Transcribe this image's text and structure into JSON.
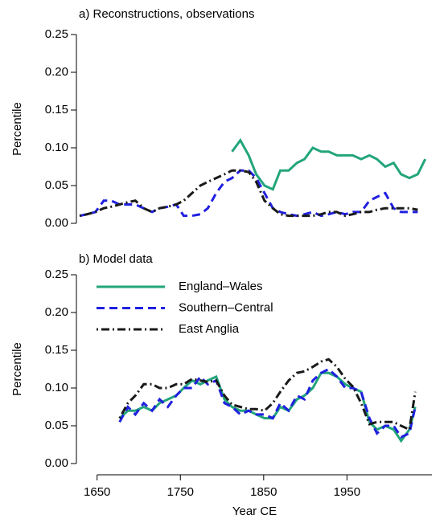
{
  "chart_data": [
    {
      "type": "line",
      "title": "a) Reconstructions, observations",
      "ylabel": "Percentile",
      "x": [
        1629,
        1638,
        1648,
        1658,
        1667,
        1677,
        1687,
        1696,
        1706,
        1716,
        1725,
        1735,
        1745,
        1754,
        1764,
        1774,
        1783,
        1793,
        1803,
        1812,
        1822,
        1832,
        1841,
        1851,
        1861,
        1870,
        1880,
        1890,
        1899,
        1909,
        1919,
        1928,
        1938,
        1948,
        1957,
        1967,
        1977,
        1986,
        1996,
        2006,
        2015,
        2025,
        2035,
        2044
      ],
      "xlim": [
        1630,
        2052
      ],
      "ylim": [
        0,
        0.25
      ],
      "yticks": [
        {
          "value": 0,
          "label": "0.00"
        },
        {
          "value": 0.05,
          "label": "0.05"
        },
        {
          "value": 0.1,
          "label": "0.10"
        },
        {
          "value": 0.15,
          "label": "0.15"
        },
        {
          "value": 0.2,
          "label": "0.20"
        },
        {
          "value": 0.25,
          "label": "0.25"
        }
      ],
      "series": [
        {
          "name": "England–Wales",
          "color": "#23a57c",
          "dash": "solid",
          "values": [
            null,
            null,
            null,
            null,
            null,
            null,
            null,
            null,
            null,
            null,
            null,
            null,
            null,
            null,
            null,
            null,
            null,
            null,
            null,
            0.095,
            0.11,
            0.09,
            0.065,
            0.05,
            0.045,
            0.07,
            0.07,
            0.08,
            0.085,
            0.1,
            0.095,
            0.095,
            0.09,
            0.09,
            0.09,
            0.085,
            0.09,
            0.085,
            0.075,
            0.08,
            0.065,
            0.06,
            0.065,
            0.085
          ]
        },
        {
          "name": "Southern–Central",
          "color": "#2020e0",
          "dash": "dashed",
          "values": [
            0.01,
            0.012,
            0.015,
            0.03,
            0.03,
            0.025,
            0.025,
            0.025,
            0.02,
            0.015,
            0.02,
            0.022,
            0.025,
            0.01,
            0.01,
            0.012,
            0.02,
            0.04,
            0.055,
            0.06,
            0.07,
            0.07,
            0.06,
            0.04,
            0.02,
            0.015,
            0.012,
            0.01,
            0.012,
            0.015,
            0.01,
            0.012,
            0.015,
            0.012,
            0.015,
            0.015,
            0.03,
            0.035,
            0.04,
            0.02,
            0.015,
            0.015,
            0.015,
            null
          ]
        },
        {
          "name": "East Anglia",
          "color": "#1a1a1a",
          "dash": "dotdash",
          "values": [
            0.01,
            0.012,
            0.015,
            0.02,
            0.022,
            0.025,
            0.028,
            0.03,
            0.02,
            0.015,
            0.02,
            0.022,
            0.025,
            0.03,
            0.04,
            0.05,
            0.055,
            0.06,
            0.065,
            0.07,
            0.07,
            0.068,
            0.055,
            0.03,
            0.02,
            0.012,
            0.01,
            0.01,
            0.01,
            0.01,
            0.012,
            0.015,
            0.015,
            0.01,
            0.012,
            0.015,
            0.015,
            0.018,
            0.02,
            0.02,
            0.02,
            0.02,
            0.018,
            null
          ]
        }
      ]
    },
    {
      "type": "line",
      "title": "b) Model data",
      "ylabel": "Percentile",
      "xlabel": "Year CE",
      "legend": "top-left",
      "x": [
        1677,
        1687,
        1696,
        1706,
        1716,
        1725,
        1735,
        1745,
        1754,
        1764,
        1774,
        1783,
        1793,
        1803,
        1812,
        1822,
        1832,
        1841,
        1851,
        1861,
        1870,
        1880,
        1890,
        1899,
        1909,
        1919,
        1928,
        1938,
        1948,
        1957,
        1967,
        1977,
        1986,
        1996,
        2006,
        2015,
        2025,
        2032
      ],
      "xlim": [
        1630,
        2052
      ],
      "xticks": [
        1650,
        1750,
        1850,
        1950
      ],
      "ylim": [
        0,
        0.25
      ],
      "yticks": [
        {
          "value": 0,
          "label": "0.00"
        },
        {
          "value": 0.05,
          "label": "0.05"
        },
        {
          "value": 0.1,
          "label": "0.10"
        },
        {
          "value": 0.15,
          "label": "0.15"
        },
        {
          "value": 0.2,
          "label": "0.20"
        },
        {
          "value": 0.25,
          "label": "0.25"
        }
      ],
      "series": [
        {
          "name": "England–Wales",
          "color": "#23a57c",
          "dash": "solid",
          "values": [
            0.06,
            0.07,
            0.07,
            0.075,
            0.07,
            0.08,
            0.085,
            0.09,
            0.1,
            0.11,
            0.105,
            0.11,
            0.115,
            0.085,
            0.075,
            0.07,
            0.07,
            0.065,
            0.06,
            0.06,
            0.075,
            0.07,
            0.085,
            0.09,
            0.1,
            0.12,
            0.12,
            0.115,
            0.105,
            0.1,
            0.095,
            0.055,
            0.045,
            0.05,
            0.045,
            0.03,
            0.045,
            0.075
          ]
        },
        {
          "name": "Southern–Central",
          "color": "#2020e0",
          "dash": "dashed",
          "values": [
            0.055,
            0.075,
            0.065,
            0.08,
            0.07,
            0.085,
            0.075,
            0.09,
            0.1,
            0.1,
            0.115,
            0.105,
            0.11,
            0.08,
            0.075,
            0.065,
            0.07,
            0.065,
            0.065,
            0.06,
            0.08,
            0.07,
            0.09,
            0.085,
            0.11,
            0.12,
            0.125,
            0.115,
            0.1,
            0.1,
            0.095,
            0.06,
            0.04,
            0.05,
            0.05,
            0.035,
            0.04,
            0.075
          ]
        },
        {
          "name": "East Anglia",
          "color": "#1a1a1a",
          "dash": "dotdash",
          "values": [
            0.06,
            0.08,
            0.09,
            0.105,
            0.105,
            0.1,
            0.1,
            0.105,
            0.105,
            0.112,
            0.11,
            0.108,
            0.11,
            0.09,
            0.078,
            0.075,
            0.072,
            0.072,
            0.07,
            0.08,
            0.095,
            0.11,
            0.12,
            0.122,
            0.128,
            0.135,
            0.138,
            0.128,
            0.112,
            0.102,
            0.08,
            0.052,
            0.055,
            0.055,
            0.055,
            0.05,
            0.045,
            0.095
          ]
        }
      ]
    }
  ]
}
